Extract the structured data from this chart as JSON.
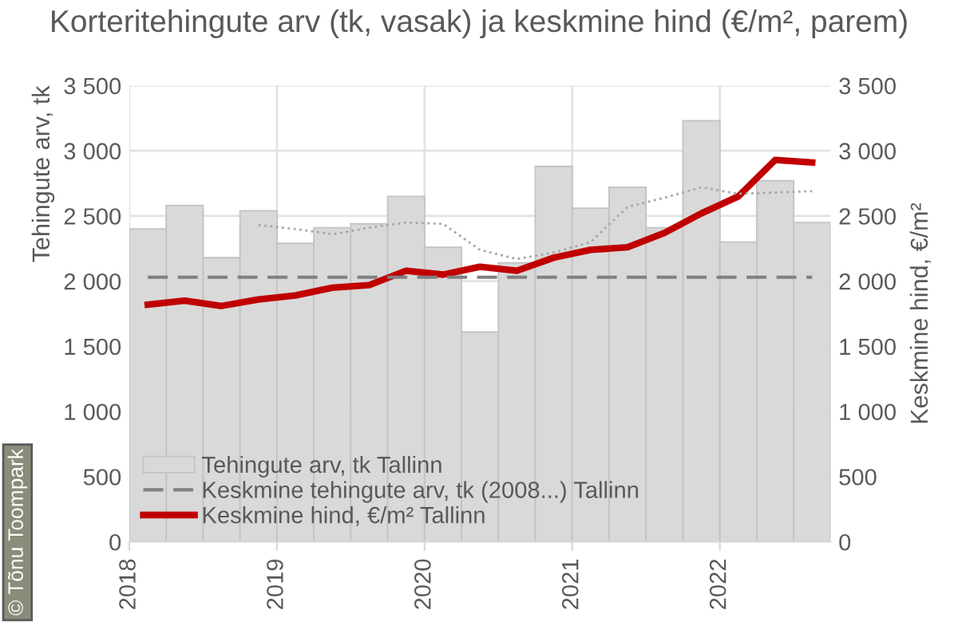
{
  "chart_data": {
    "type": "bar",
    "title": "Korteritehingute arv (tk, vasak) ja keskmine hind (€/m², parem)",
    "ylabel": "Tehingute arv, tk",
    "y2label": "Keskmine hind, €/m²",
    "x": [
      2018.125,
      2018.375,
      2018.625,
      2018.875,
      2019.125,
      2019.375,
      2019.625,
      2019.875,
      2020.125,
      2020.375,
      2020.625,
      2020.875,
      2021.125,
      2021.375,
      2021.625,
      2021.875,
      2022.125,
      2022.375,
      2022.625
    ],
    "series": [
      {
        "name": "Tehingute arv, tk Tallinn",
        "color": "#d9d9d9",
        "values": [
          2400,
          2580,
          2180,
          2540,
          2290,
          2410,
          2440,
          2650,
          2260,
          1610,
          2140,
          2880,
          2560,
          2720,
          2410,
          3230,
          2300,
          2770,
          2450
        ]
      },
      {
        "name": "Keskmine tehingute arv, tk (2008...) Tallinn",
        "type": "line",
        "line_style": "dashed",
        "color": "#808080",
        "values": [
          2030,
          2030,
          2030,
          2030,
          2030,
          2030,
          2030,
          2030,
          2030,
          2030,
          2030,
          2030,
          2030,
          2030,
          2030,
          2030,
          2030,
          2030,
          2030
        ]
      },
      {
        "type": "line",
        "line_style": "dotted",
        "color": "#a6a6a6",
        "values": [
          null,
          null,
          null,
          2430,
          2400,
          2360,
          2410,
          2450,
          2440,
          2240,
          2170,
          2220,
          2300,
          2570,
          2640,
          2720,
          2670,
          2680,
          2690
        ]
      },
      {
        "name": "Keskmine hind, €/m² Tallinn",
        "type": "line",
        "axis": "y2",
        "line_style": "solid",
        "color": "#c00000",
        "values": [
          1820,
          1850,
          1810,
          1860,
          1890,
          1950,
          1970,
          2080,
          2050,
          2110,
          2080,
          2180,
          2240,
          2260,
          2370,
          2520,
          2650,
          2930,
          2910
        ]
      }
    ],
    "xlim": [
      2018,
      2022.75
    ],
    "xticks": [
      2018,
      2019,
      2020,
      2021,
      2022
    ],
    "ylim": [
      0,
      3500
    ],
    "yticks": [
      {
        "value": 0,
        "label": "0"
      },
      {
        "value": 500,
        "label": "500"
      },
      {
        "value": 1000,
        "label": "1 000"
      },
      {
        "value": 1500,
        "label": "1 500"
      },
      {
        "value": 2000,
        "label": "2 000"
      },
      {
        "value": 2500,
        "label": "2 500"
      },
      {
        "value": 3000,
        "label": "3 000"
      },
      {
        "value": 3500,
        "label": "3 500"
      }
    ],
    "y2lim": [
      0,
      3500
    ],
    "y2ticks": [
      {
        "value": 0,
        "label": "0"
      },
      {
        "value": 500,
        "label": "500"
      },
      {
        "value": 1000,
        "label": "1 000"
      },
      {
        "value": 1500,
        "label": "1 500"
      },
      {
        "value": 2000,
        "label": "2 000"
      },
      {
        "value": 2500,
        "label": "2 500"
      },
      {
        "value": 3000,
        "label": "3 000"
      },
      {
        "value": 3500,
        "label": "3 500"
      }
    ],
    "grid": true,
    "legend": "bottom left",
    "marker": "none",
    "annotations": [
      "© Tõnu Toompark"
    ]
  }
}
